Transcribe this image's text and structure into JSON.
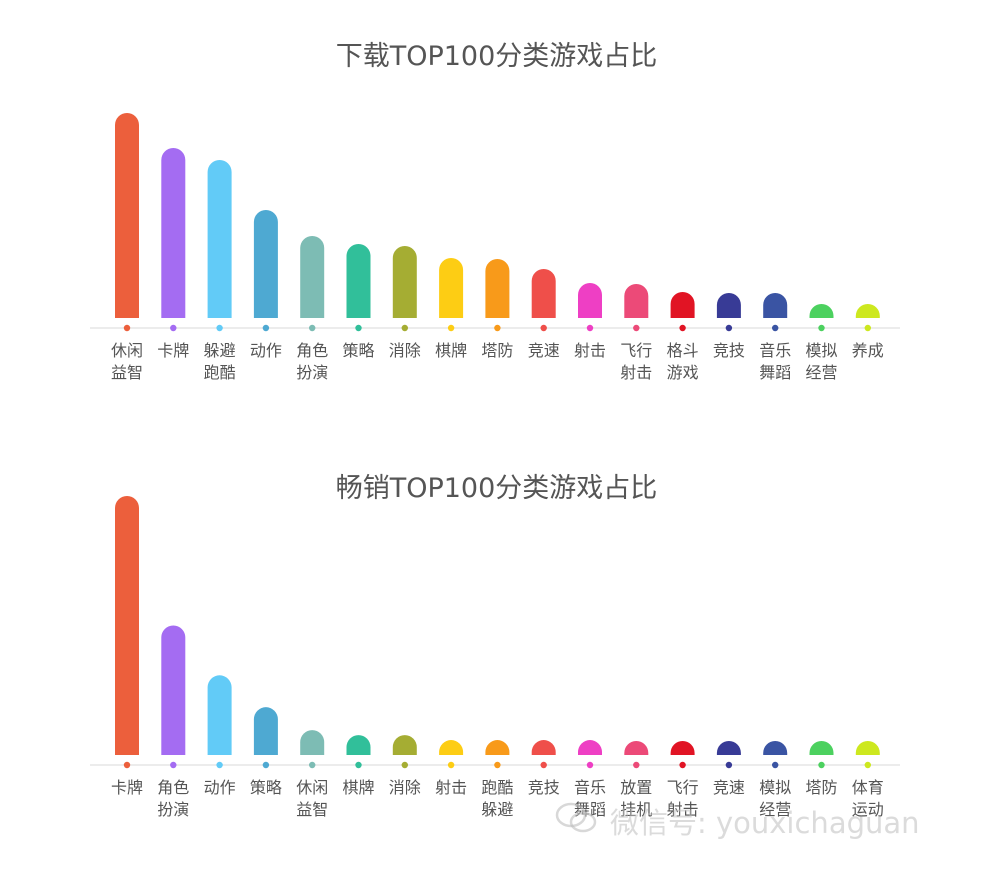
{
  "chart_data": [
    {
      "type": "bar",
      "title": "下载TOP100分类游戏占比",
      "categories": [
        [
          "休闲",
          "益智"
        ],
        [
          "卡牌"
        ],
        [
          "躲避",
          "跑酷"
        ],
        [
          "动作"
        ],
        [
          "角色",
          "扮演"
        ],
        [
          "策略"
        ],
        [
          "消除"
        ],
        [
          "棋牌"
        ],
        [
          "塔防"
        ],
        [
          "竞速"
        ],
        [
          "射击"
        ],
        [
          "飞行",
          "射击"
        ],
        [
          "格斗",
          "游戏"
        ],
        [
          "竞技"
        ],
        [
          "音乐",
          "舞蹈"
        ],
        [
          "模拟",
          "经营"
        ],
        [
          "养成"
        ]
      ],
      "values": [
        20.5,
        17,
        15.8,
        10.8,
        8.2,
        7.4,
        7.2,
        6,
        5.9,
        4.9,
        3.5,
        3.4,
        2.6,
        2.5,
        2.5,
        1.1,
        1.1
      ],
      "colors": [
        "#ec5f3c",
        "#a46cf2",
        "#62cbf7",
        "#4ea9d2",
        "#7dbcb4",
        "#31bf9a",
        "#a5ad33",
        "#fdcd14",
        "#f89a1a",
        "#ef4f4a",
        "#ee3fc4",
        "#ec4a78",
        "#e11424",
        "#383b96",
        "#3a54a3",
        "#4cd15f",
        "#cde81f"
      ]
    },
    {
      "type": "bar",
      "title": "畅销TOP100分类游戏占比",
      "categories": [
        [
          "卡牌"
        ],
        [
          "角色",
          "扮演"
        ],
        [
          "动作"
        ],
        [
          "策略"
        ],
        [
          "休闲",
          "益智"
        ],
        [
          "棋牌"
        ],
        [
          "消除"
        ],
        [
          "射击"
        ],
        [
          "跑酷",
          "躲避"
        ],
        [
          "竞技"
        ],
        [
          "音乐",
          "舞蹈"
        ],
        [
          "放置",
          "挂机"
        ],
        [
          "飞行",
          "射击"
        ],
        [
          "竞速"
        ],
        [
          "模拟",
          "经营"
        ],
        [
          "塔防"
        ],
        [
          "体育",
          "运动"
        ]
      ],
      "values": [
        26,
        13,
        8,
        4.8,
        2.5,
        2,
        2,
        1.5,
        1.5,
        1.5,
        1.5,
        0.6,
        0.6,
        0.6,
        0.6,
        0.6,
        0.6
      ],
      "colors": [
        "#ec5f3c",
        "#a46cf2",
        "#62cbf7",
        "#4ea9d2",
        "#7dbcb4",
        "#31bf9a",
        "#a5ad33",
        "#fdcd14",
        "#f89a1a",
        "#ef4f4a",
        "#ee3fc4",
        "#ec4a78",
        "#e11424",
        "#383b96",
        "#3a54a3",
        "#4cd15f",
        "#cde81f"
      ]
    }
  ],
  "watermark": {
    "text": "微信号: youxichaguan",
    "icon": "wechat-icon"
  }
}
